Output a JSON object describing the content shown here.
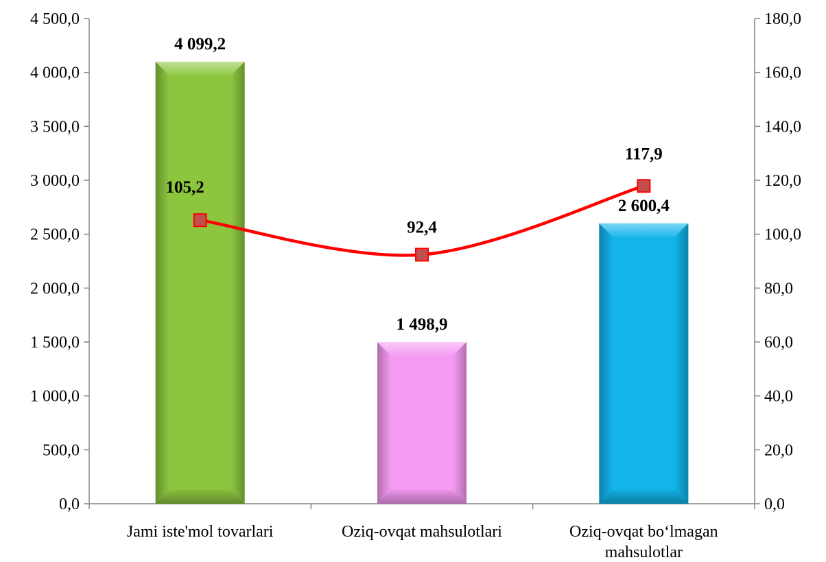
{
  "chart_data": {
    "type": "bar",
    "categories": [
      [
        "Jami iste'mol tovarlari"
      ],
      [
        "Oziq-ovqat mahsulotlari"
      ],
      [
        "Oziq-ovqat bo‘lmagan",
        "mahsulotlar"
      ]
    ],
    "bar_values": [
      4099.2,
      1498.9,
      2600.4
    ],
    "bar_labels": [
      "4 099,2",
      "1 498,9",
      "2 600,4"
    ],
    "bar_colors": [
      "#8cc63f",
      "#f59af3",
      "#12b4ea"
    ],
    "line_values": [
      105.2,
      92.4,
      117.9
    ],
    "line_labels": [
      "105,2",
      "92,4",
      "117,9"
    ],
    "line_color": "#ff0000",
    "marker_color": "#c0504d",
    "y_left": {
      "min": 0,
      "max": 4500,
      "step": 500,
      "tick_labels": [
        "0,0",
        "500,0",
        "1 000,0",
        "1 500,0",
        "2 000,0",
        "2 500,0",
        "3 000,0",
        "3 500,0",
        "4 000,0",
        "4 500,0"
      ]
    },
    "y_right": {
      "min": 0,
      "max": 180,
      "step": 20,
      "tick_labels": [
        "0,0",
        "20,0",
        "40,0",
        "60,0",
        "80,0",
        "100,0",
        "120,0",
        "140,0",
        "160,0",
        "180,0"
      ]
    },
    "grid": false,
    "legend": "none"
  }
}
